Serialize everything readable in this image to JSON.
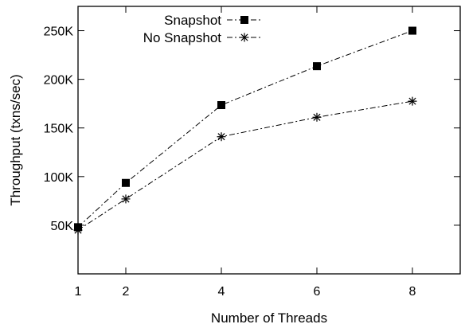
{
  "chart_data": {
    "type": "line",
    "xlabel": "Number of Threads",
    "ylabel": "Throughput (txns/sec)",
    "x": [
      1,
      2,
      4,
      6,
      8
    ],
    "xlim": [
      1,
      9
    ],
    "ylim": [
      0,
      275000
    ],
    "xticks": [
      {
        "value": 1,
        "label": "1"
      },
      {
        "value": 2,
        "label": "2"
      },
      {
        "value": 4,
        "label": "4"
      },
      {
        "value": 6,
        "label": "6"
      },
      {
        "value": 8,
        "label": "8"
      }
    ],
    "yticks": [
      {
        "value": 50000,
        "label": "50K"
      },
      {
        "value": 100000,
        "label": "100K"
      },
      {
        "value": 150000,
        "label": "150K"
      },
      {
        "value": 200000,
        "label": "200K"
      },
      {
        "value": 250000,
        "label": "250K"
      }
    ],
    "grid": false,
    "legend_position": "top-left",
    "series": [
      {
        "name": "Snapshot",
        "marker": "filled-square",
        "line_style": "dash-dot",
        "color": "#000000",
        "values": [
          48000,
          93500,
          173500,
          213500,
          250000
        ]
      },
      {
        "name": "No Snapshot",
        "marker": "asterisk",
        "line_style": "dash-dot",
        "color": "#000000",
        "values": [
          45000,
          77000,
          141000,
          161000,
          177500
        ]
      }
    ]
  }
}
